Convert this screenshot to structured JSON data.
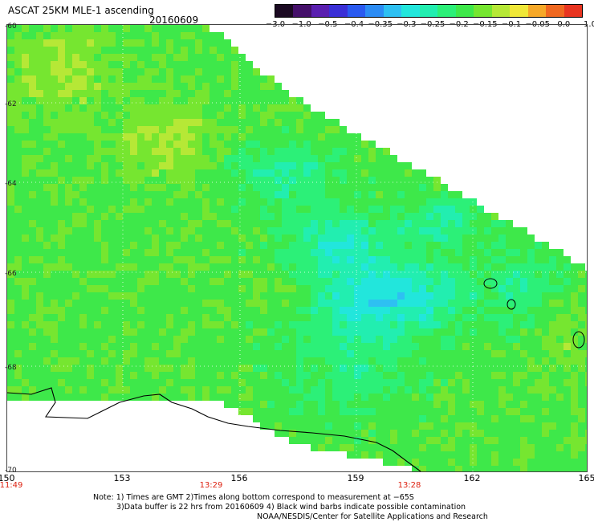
{
  "header": {
    "title": "ASCAT 25KM MLE-1 ascending",
    "date": "20160609"
  },
  "colorbar": {
    "colors": [
      "#1b0a22",
      "#45106a",
      "#5a1fb0",
      "#3a2fd6",
      "#2a5af0",
      "#2c8cf4",
      "#2ec0f2",
      "#22e6dc",
      "#22eeb0",
      "#2cf078",
      "#3ee84a",
      "#76e630",
      "#b6e836",
      "#f0e838",
      "#f6a828",
      "#f06820",
      "#e83420"
    ],
    "labels": [
      "−3.0",
      "−1.0",
      "−0.5",
      "−0.4",
      "−0.35",
      "−0.3",
      "−0.25",
      "−0.2",
      "−0.15",
      "−0.1",
      "−0.05",
      "0.0",
      "1.0"
    ]
  },
  "axes": {
    "lat_labels": [
      "-60",
      "-62",
      "-64",
      "-66",
      "-68",
      "-70"
    ],
    "lon_labels": [
      "150",
      "153",
      "156",
      "159",
      "162",
      "165"
    ],
    "time_labels": [
      "11:49",
      "13:29",
      "13:28"
    ]
  },
  "notes": {
    "line1": "Note: 1) Times are GMT 2)Times along bottom correspond to measurement at −65S",
    "line2": "3)Data buffer is 22 hrs from 20160609 4) Black wind barbs indicate possible contamination",
    "line3": "NOAA/NESDIS/Center for Satellite Applications and Research"
  }
}
